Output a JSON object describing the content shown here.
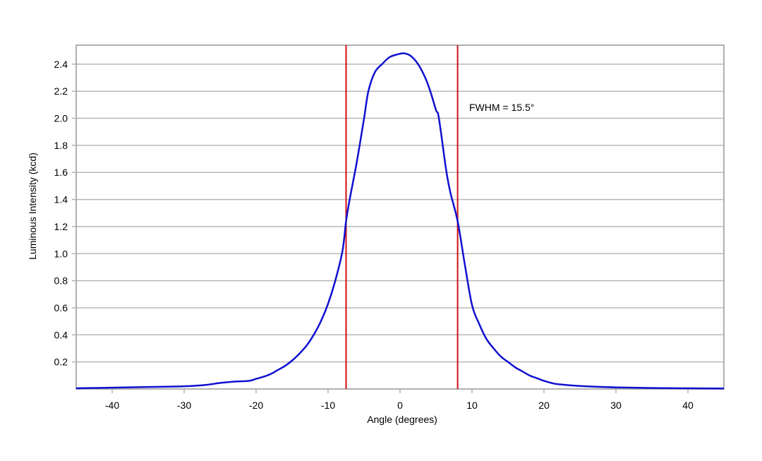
{
  "chart_data": {
    "type": "line",
    "title": "",
    "xlabel": "Angle (degrees)",
    "ylabel": "Luminous Intensity (kcd)",
    "xlim": [
      -45,
      45
    ],
    "ylim": [
      0,
      2.54
    ],
    "xticks": [
      -40,
      -30,
      -20,
      -10,
      0,
      10,
      20,
      30,
      40
    ],
    "yticks": [
      0.2,
      0.4,
      0.6,
      0.8,
      1.0,
      1.2,
      1.4,
      1.6,
      1.8,
      2.0,
      2.2,
      2.4
    ],
    "ytick_labels": [
      "0.2",
      "0.4",
      "0.6",
      "0.8",
      "1.0",
      "1.2",
      "1.4",
      "1.6",
      "1.8",
      "2.0",
      "2.2",
      "2.4"
    ],
    "grid": "horizontal",
    "series": [
      {
        "name": "Luminous Intensity",
        "color": "#1010d0",
        "x": [
          -45,
          -40,
          -35,
          -30,
          -27,
          -25,
          -23,
          -21,
          -20,
          -19,
          -18,
          -17,
          -16,
          -15,
          -14,
          -13,
          -12,
          -11,
          -10,
          -9,
          -8,
          -7.5,
          -7,
          -6,
          -5,
          -4.4,
          -3.5,
          -2.5,
          -1.5,
          -0.5,
          0.5,
          1.5,
          2.5,
          3.5,
          4.2,
          5,
          5.4,
          6.4,
          7,
          8,
          9,
          10,
          11,
          12,
          13,
          14,
          15,
          16,
          17,
          18,
          19,
          20,
          21,
          22,
          25,
          30,
          35,
          40,
          45
        ],
        "y": [
          0.005,
          0.01,
          0.015,
          0.02,
          0.03,
          0.045,
          0.055,
          0.06,
          0.075,
          0.09,
          0.11,
          0.14,
          0.17,
          0.21,
          0.26,
          0.32,
          0.4,
          0.5,
          0.63,
          0.8,
          1.02,
          1.24,
          1.4,
          1.68,
          2.0,
          2.2,
          2.34,
          2.4,
          2.45,
          2.47,
          2.48,
          2.46,
          2.4,
          2.3,
          2.2,
          2.06,
          2.0,
          1.62,
          1.45,
          1.24,
          0.92,
          0.62,
          0.48,
          0.37,
          0.3,
          0.24,
          0.2,
          0.16,
          0.13,
          0.1,
          0.08,
          0.06,
          0.045,
          0.035,
          0.022,
          0.012,
          0.007,
          0.005,
          0.004
        ]
      }
    ],
    "vlines": [
      {
        "x": -7.5,
        "color": "#d01010"
      },
      {
        "x": 8.0,
        "color": "#d01010"
      }
    ],
    "annotation": "FWHM = 15.5°"
  }
}
